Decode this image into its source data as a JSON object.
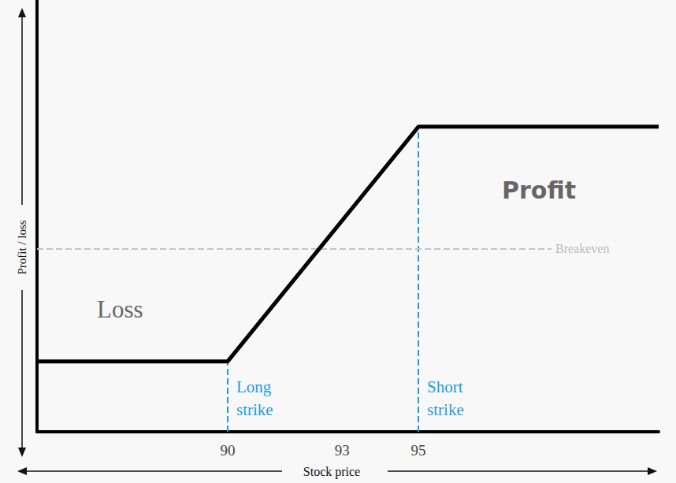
{
  "chart_data": {
    "type": "line",
    "x_label": "Stock price",
    "y_label": "Profit / loss",
    "x": [
      85,
      90,
      95,
      101.3
    ],
    "values": [
      -2.4,
      -2.4,
      2.6,
      2.6
    ],
    "color": "#000000",
    "xlim": [
      85,
      101.3
    ],
    "ylim": [
      -3.9,
      5.3
    ],
    "xticks": [
      90,
      93,
      95
    ],
    "yticks": [],
    "tick_labels": "x",
    "grid": false,
    "annotations": {
      "breakeven": {
        "y": 0,
        "label": "Breakeven"
      },
      "strikes": [
        {
          "x": 90,
          "label": "Long strike"
        },
        {
          "x": 95,
          "label": "Short strike"
        }
      ],
      "regions": [
        {
          "label": "Loss"
        },
        {
          "label": "Profit"
        }
      ]
    }
  }
}
